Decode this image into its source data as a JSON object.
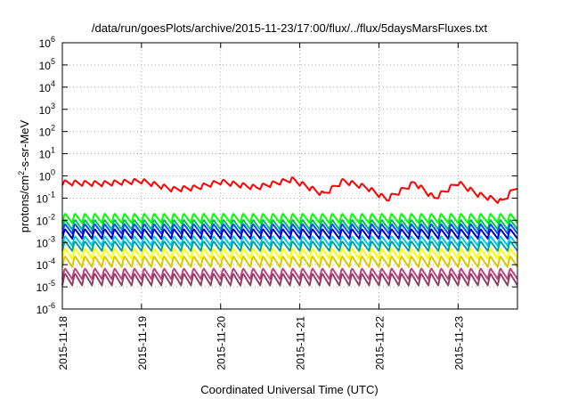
{
  "chart_data": {
    "type": "line",
    "title": "/data/run/goesPlots/archive/2015-11-23/17:00/flux/../flux/5daysMarsFluxes.txt",
    "xlabel": "Coordinated Universal Time (UTC)",
    "ylabel": {
      "base": "protons/cm",
      "sup": "2",
      "rest": "-s-sr-MeV"
    },
    "x_ticks": [
      "2015-11-18",
      "2015-11-19",
      "2015-11-20",
      "2015-11-21",
      "2015-11-22",
      "2015-11-23"
    ],
    "xlim": [
      "2015-11-18T00:00",
      "2015-11-23T18:00"
    ],
    "y_scale": "log",
    "ylim": [
      1e-06,
      1000000.0
    ],
    "y_ticks": [
      {
        "base": "10",
        "exp": "-6"
      },
      {
        "base": "10",
        "exp": "-5"
      },
      {
        "base": "10",
        "exp": "-4"
      },
      {
        "base": "10",
        "exp": "-3"
      },
      {
        "base": "10",
        "exp": "-2"
      },
      {
        "base": "10",
        "exp": "-1"
      },
      {
        "base": "10",
        "exp": "0"
      },
      {
        "base": "10",
        "exp": "1"
      },
      {
        "base": "10",
        "exp": "2"
      },
      {
        "base": "10",
        "exp": "3"
      },
      {
        "base": "10",
        "exp": "4"
      },
      {
        "base": "10",
        "exp": "5"
      },
      {
        "base": "10",
        "exp": "6"
      }
    ],
    "grid": true,
    "series": [
      {
        "color": "#ff0000",
        "pattern": "sawtooth",
        "period_days": 0.125,
        "amplitude_decades": 0.25,
        "trend_days": [
          0,
          0.5,
          1.0,
          1.4,
          1.7,
          2.0,
          2.45,
          2.9,
          3.3,
          3.55,
          3.85,
          4.1,
          4.45,
          4.7,
          5.0,
          5.25,
          5.55,
          5.75
        ],
        "trend_values": [
          0.5,
          0.45,
          0.6,
          0.25,
          0.3,
          0.55,
          0.3,
          0.7,
          0.15,
          0.6,
          0.3,
          0.09,
          0.5,
          0.1,
          0.5,
          0.15,
          0.07,
          0.35
        ]
      },
      {
        "color": "#00ff00",
        "pattern": "sawtooth",
        "period_days": 0.125,
        "amplitude_decades": 0.45,
        "level": 0.0125
      },
      {
        "color": "#00c060",
        "pattern": "sawtooth",
        "period_days": 0.125,
        "amplitude_decades": 0.45,
        "level": 0.0065
      },
      {
        "color": "#0050ff",
        "pattern": "sawtooth",
        "period_days": 0.125,
        "amplitude_decades": 0.45,
        "level": 0.0042
      },
      {
        "color": "#0000c0",
        "pattern": "sawtooth",
        "period_days": 0.125,
        "amplitude_decades": 0.45,
        "level": 0.0025
      },
      {
        "color": "#00c8e8",
        "pattern": "sawtooth",
        "period_days": 0.125,
        "amplitude_decades": 0.45,
        "level": 0.0012
      },
      {
        "color": "#00a0a0",
        "pattern": "sawtooth",
        "period_days": 0.125,
        "amplitude_decades": 0.45,
        "level": 0.0007
      },
      {
        "color": "#ffff00",
        "pattern": "sawtooth",
        "period_days": 0.125,
        "amplitude_decades": 0.5,
        "level": 0.00032
      },
      {
        "color": "#d8c800",
        "pattern": "sawtooth",
        "period_days": 0.125,
        "amplitude_decades": 0.5,
        "level": 0.00014
      },
      {
        "color": "#c04080",
        "pattern": "sawtooth",
        "period_days": 0.125,
        "amplitude_decades": 0.5,
        "level": 4e-05
      },
      {
        "color": "#904060",
        "pattern": "sawtooth",
        "period_days": 0.125,
        "amplitude_decades": 0.55,
        "level": 2.2e-05
      }
    ]
  }
}
